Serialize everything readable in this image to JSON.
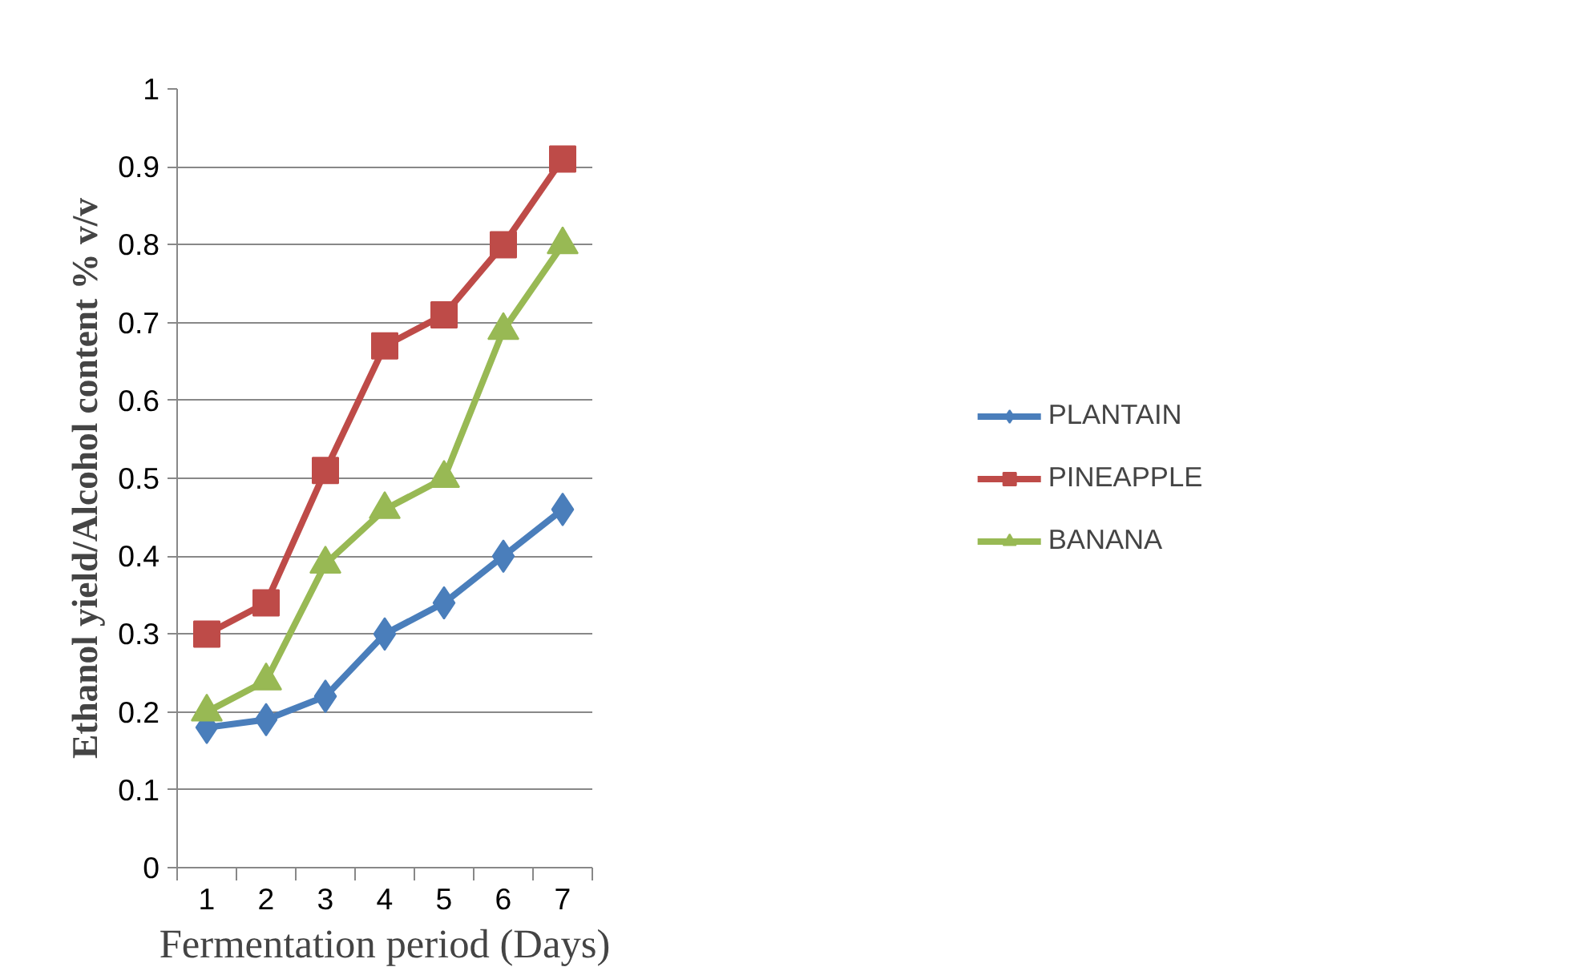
{
  "chart_data": {
    "type": "line",
    "xlabel": "Fermentation period (Days)",
    "ylabel": "Ethanol yield/Alcohol content % v/v",
    "categories": [
      "1",
      "2",
      "3",
      "4",
      "5",
      "6",
      "7"
    ],
    "series": [
      {
        "name": "PLANTAIN",
        "color": "#4a7ebb",
        "marker": "diamond",
        "values": [
          0.18,
          0.19,
          0.22,
          0.3,
          0.34,
          0.4,
          0.46
        ]
      },
      {
        "name": "PINEAPPLE",
        "color": "#be4b48",
        "marker": "square",
        "values": [
          0.3,
          0.34,
          0.51,
          0.67,
          0.71,
          0.8,
          0.91
        ]
      },
      {
        "name": "BANANA",
        "color": "#98b954",
        "marker": "triangle",
        "values": [
          0.2,
          0.24,
          0.39,
          0.46,
          0.5,
          0.69,
          0.8
        ]
      }
    ],
    "ylim": [
      0,
      1
    ],
    "yticks": [
      0,
      0.1,
      0.2,
      0.3,
      0.4,
      0.5,
      0.6,
      0.7,
      0.8,
      0.9,
      1
    ],
    "grid": "y",
    "legend": "right",
    "line_style": "solid"
  }
}
